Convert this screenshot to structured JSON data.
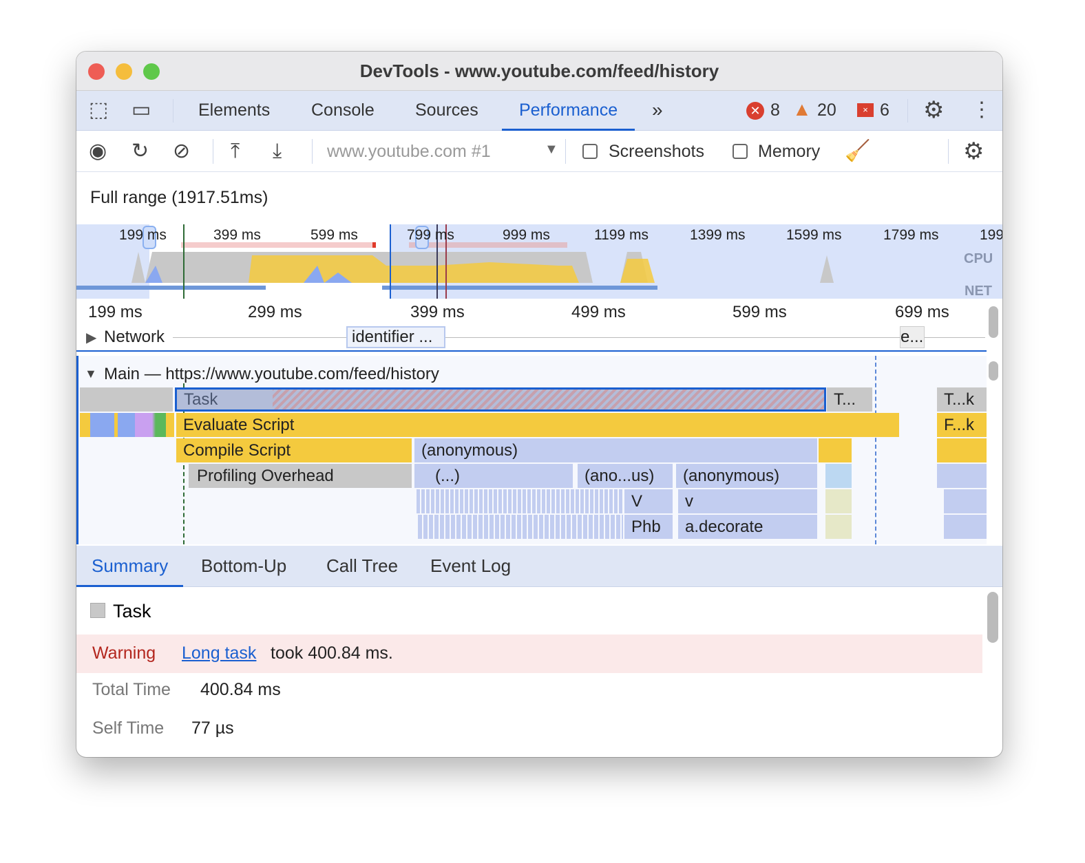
{
  "window": {
    "title": "DevTools - www.youtube.com/feed/history"
  },
  "tabs": [
    {
      "label": "Elements"
    },
    {
      "label": "Console"
    },
    {
      "label": "Sources"
    },
    {
      "label": "Performance",
      "active": true
    }
  ],
  "badges": {
    "errors": "8",
    "warnings": "20",
    "issues": "6"
  },
  "toolbar": {
    "target": "www.youtube.com #1",
    "screenshots_label": "Screenshots",
    "screenshots_checked": false,
    "memory_label": "Memory",
    "memory_checked": false
  },
  "range": {
    "label": "Full range (1917.51ms)"
  },
  "overview": {
    "ticks": [
      "199 ms",
      "399 ms",
      "599 ms",
      "799 ms",
      "999 ms",
      "1199 ms",
      "1399 ms",
      "1599 ms",
      "1799 ms",
      "199"
    ],
    "cpu_label": "CPU",
    "net_label": "NET"
  },
  "ruler": {
    "ticks": [
      "199 ms",
      "299 ms",
      "399 ms",
      "499 ms",
      "599 ms",
      "699 ms"
    ]
  },
  "network": {
    "label": "Network",
    "items": [
      "identifier ...",
      "e..."
    ]
  },
  "main": {
    "label": "Main — https://www.youtube.com/feed/history",
    "blocks": {
      "task": "Task",
      "task2": "T...",
      "task3": "T...k",
      "evaluate": "Evaluate Script",
      "fk": "F...k",
      "compile": "Compile Script",
      "anon1": "(anonymous)",
      "profiling": "Profiling Overhead",
      "ellipsis": "(...)",
      "anon_short": "(ano...us)",
      "anon2": "(anonymous)",
      "V": "V",
      "v": "v",
      "phb": "Phb",
      "decorate": "a.decorate"
    }
  },
  "bottom_tabs": [
    {
      "label": "Summary",
      "active": true
    },
    {
      "label": "Bottom-Up"
    },
    {
      "label": "Call Tree"
    },
    {
      "label": "Event Log"
    }
  ],
  "summary": {
    "title": "Task",
    "warning_label": "Warning",
    "warning_link": "Long task",
    "warning_text": "took 400.84 ms.",
    "total_label": "Total Time",
    "total_value": "400.84 ms",
    "self_label": "Self Time",
    "self_value": "77 µs"
  },
  "colors": {
    "accent": "#1a5fd0",
    "scripting": "#f4ca3e",
    "rendering": "#c2cdf0",
    "warning_bg": "#fbe9e9",
    "warning_text": "#b3261e"
  }
}
